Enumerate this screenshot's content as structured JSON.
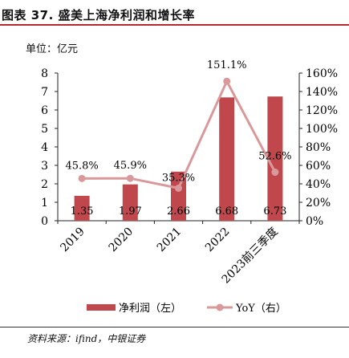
{
  "title": "图表 37. 盛美上海净利润和增长率",
  "unit_label": "单位：亿元",
  "source": "资料来源：ifind，中银证券",
  "chart_data": {
    "type": "bar",
    "categories": [
      "2019",
      "2020",
      "2021",
      "2022",
      "2023前三季度"
    ],
    "series": [
      {
        "name": "净利润（左）",
        "type": "bar",
        "axis": "left",
        "values": [
          1.35,
          1.97,
          2.66,
          6.68,
          6.73
        ],
        "labels": [
          "1.35",
          "1.97",
          "2.66",
          "6.68",
          "6.73"
        ],
        "color": "#c0474b"
      },
      {
        "name": "YoY（右）",
        "type": "line",
        "axis": "right",
        "values": [
          45.8,
          45.9,
          35.3,
          151.1,
          52.6
        ],
        "labels": [
          "45.8%",
          "45.9%",
          "35.3%",
          "151.1%",
          "52.6%"
        ],
        "color": "#d9999b"
      }
    ],
    "y_left": {
      "min": 0,
      "max": 8,
      "ticks": [
        "0",
        "1",
        "2",
        "3",
        "4",
        "5",
        "6",
        "7",
        "8"
      ]
    },
    "y_right": {
      "min": 0,
      "max": 160,
      "ticks": [
        "0%",
        "20%",
        "40%",
        "60%",
        "80%",
        "100%",
        "120%",
        "140%",
        "160%"
      ]
    },
    "legend_position": "bottom",
    "grid": false
  }
}
